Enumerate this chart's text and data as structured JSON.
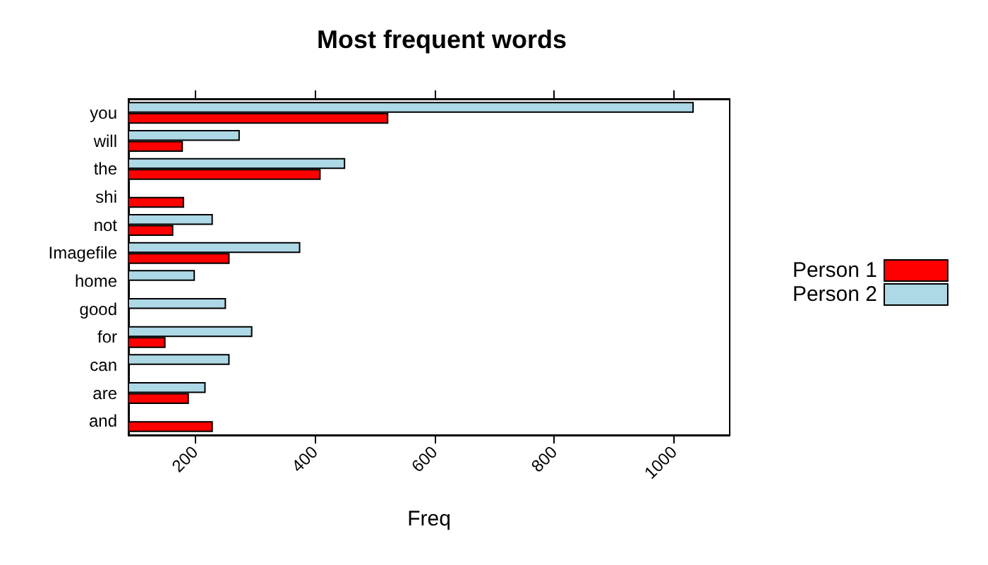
{
  "chart_data": {
    "type": "bar",
    "orientation": "horizontal",
    "title": "Most frequent words",
    "xlabel": "Freq",
    "categories": [
      "you",
      "will",
      "the",
      "shi",
      "not",
      "Imagefile",
      "home",
      "good",
      "for",
      "can",
      "are",
      "and"
    ],
    "series": [
      {
        "name": "Person 1",
        "color": "#ff0000",
        "values": [
          523,
          180,
          410,
          182,
          164,
          258,
          null,
          null,
          151,
          null,
          190,
          230
        ]
      },
      {
        "name": "Person 2",
        "color": "#add8e6",
        "values": [
          1033,
          275,
          451,
          null,
          230,
          376,
          200,
          252,
          296,
          258,
          218,
          null
        ]
      }
    ],
    "xlim": [
      89,
      1093
    ],
    "xticks": [
      200,
      400,
      600,
      800,
      1000
    ],
    "grid": false,
    "legend": "right"
  }
}
